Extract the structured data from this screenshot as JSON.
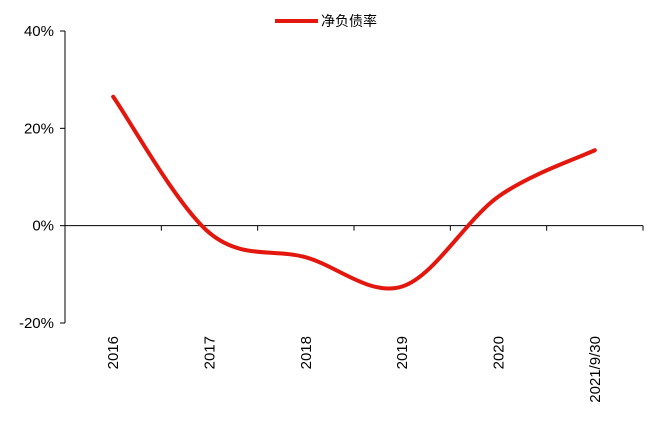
{
  "chart_data": {
    "type": "line",
    "title": "",
    "xlabel": "",
    "ylabel": "",
    "categories": [
      "2016",
      "2017",
      "2018",
      "2019",
      "2020",
      "2021/9/30"
    ],
    "series": [
      {
        "name": "净负债率",
        "color": "#e3170d",
        "values": [
          26.5,
          -1.5,
          -6.5,
          -12.5,
          6.0,
          15.5
        ]
      }
    ],
    "ylim": [
      -20,
      40
    ],
    "yticks": [
      -20,
      0,
      20,
      40
    ],
    "ytick_labels": [
      "-20%",
      "0%",
      "20%",
      "40%"
    ],
    "grid": false,
    "legend": "top-center",
    "smooth": true
  }
}
